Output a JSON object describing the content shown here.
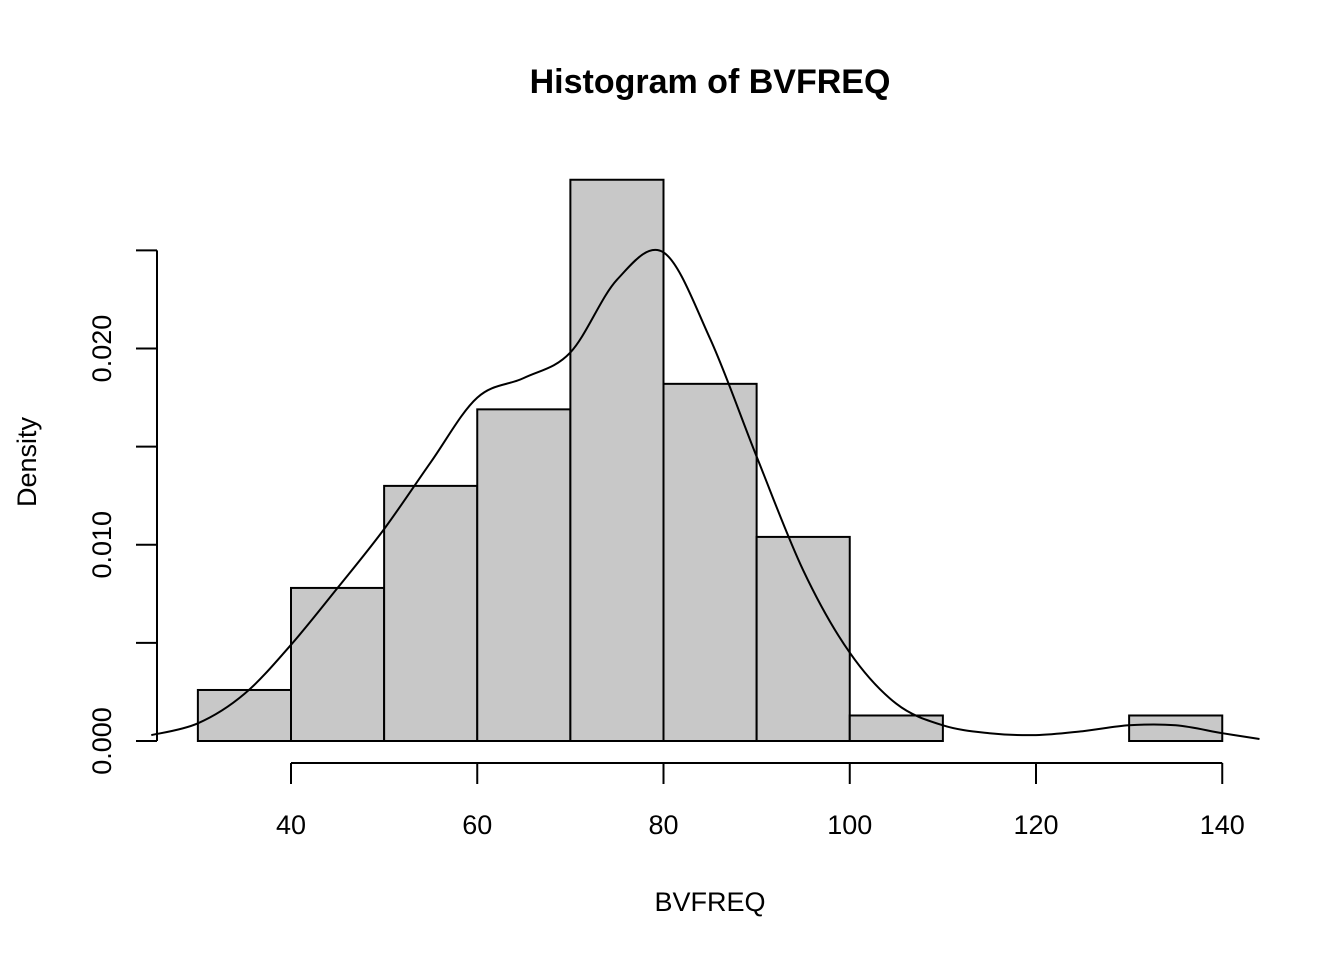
{
  "chart_data": {
    "type": "bar",
    "title": "Histogram of BVFREQ",
    "xlabel": "BVFREQ",
    "ylabel": "Density",
    "breaks": [
      30,
      40,
      50,
      60,
      70,
      80,
      90,
      100,
      110,
      120,
      130,
      140
    ],
    "values": [
      0.0026,
      0.0078,
      0.013,
      0.0169,
      0.0286,
      0.0182,
      0.0104,
      0.0013,
      0,
      0,
      0.0013
    ],
    "x_ticks": [
      "40",
      "60",
      "80",
      "100",
      "120",
      "140"
    ],
    "y_ticks": [
      "0.000",
      "0.010",
      "0.020"
    ],
    "xlim": [
      25,
      145
    ],
    "ylim": [
      0,
      0.025
    ],
    "grid": false,
    "series": [
      {
        "type": "line",
        "x": [
          25,
          30,
          35,
          40,
          45,
          50,
          55,
          60,
          65,
          70,
          75,
          80,
          85,
          90,
          95,
          100,
          105,
          110,
          115,
          120,
          125,
          130,
          135,
          140,
          144
        ],
        "values": [
          0.0003,
          0.0009,
          0.0024,
          0.0049,
          0.0078,
          0.0108,
          0.0142,
          0.0175,
          0.0185,
          0.0198,
          0.0235,
          0.0249,
          0.0205,
          0.0145,
          0.0087,
          0.0045,
          0.0019,
          0.0008,
          0.0004,
          0.0003,
          0.0005,
          0.0008,
          0.0008,
          0.0004,
          0.0001
        ]
      }
    ]
  }
}
